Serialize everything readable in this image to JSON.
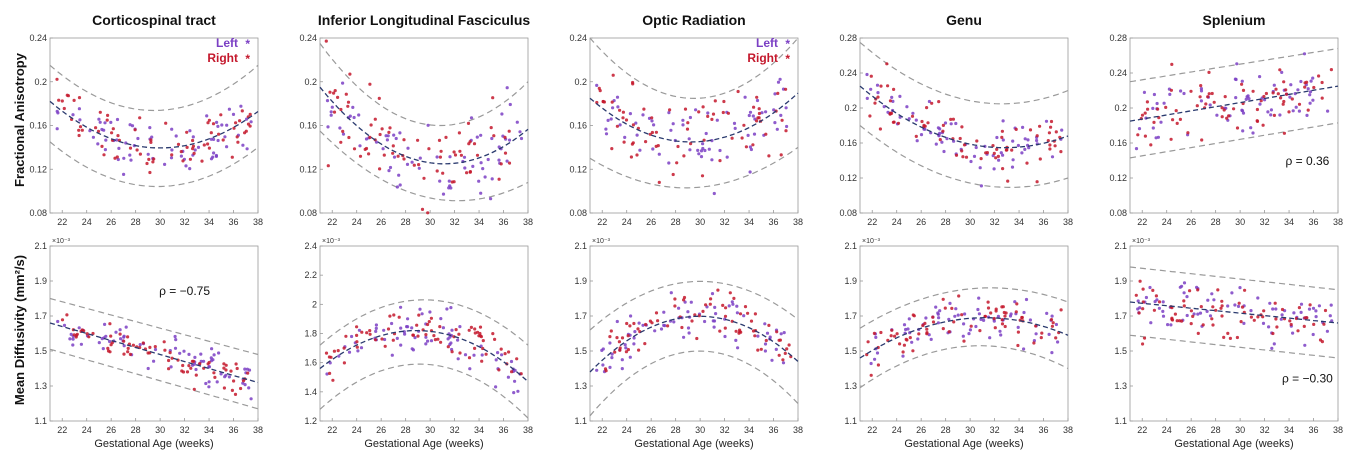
{
  "figure": {
    "row_labels": [
      "Fractional Anisotropy",
      "Mean Diffusivity (mm²/s)"
    ],
    "legend": {
      "left_label": "Left",
      "right_label": "Right",
      "left_color": "#7b3fc4",
      "right_color": "#c4182c",
      "marker": "*"
    }
  },
  "chart_data": [
    {
      "type": "scatter",
      "title": "Corticospinal tract",
      "xlabel": "",
      "ylabel": "Fractional Anisotropy",
      "xlim": [
        21,
        38
      ],
      "ylim": [
        0.08,
        0.24
      ],
      "xticks": [
        "22",
        "24",
        "26",
        "28",
        "30",
        "32",
        "34",
        "36",
        "38"
      ],
      "yticks": [
        "0.08",
        "0.12",
        "0.16",
        "0.2",
        "0.24"
      ],
      "fit": {
        "type": "quadratic",
        "points": [
          [
            21,
            0.182
          ],
          [
            31,
            0.14
          ],
          [
            37,
            0.165
          ]
        ]
      },
      "band": {
        "upper": [
          [
            21,
            0.215
          ],
          [
            31,
            0.175
          ],
          [
            38,
            0.215
          ]
        ],
        "lower": [
          [
            21,
            0.145
          ],
          [
            31,
            0.105
          ],
          [
            38,
            0.14
          ]
        ]
      },
      "series": [
        {
          "name": "Left",
          "spread": 0.012
        },
        {
          "name": "Right",
          "spread": 0.012
        }
      ],
      "annotation": "",
      "exponent": "",
      "legend": true
    },
    {
      "type": "scatter",
      "title": "Inferior Longitudinal Fasciculus",
      "xlabel": "",
      "ylabel": "",
      "xlim": [
        21,
        38
      ],
      "ylim": [
        0.08,
        0.24
      ],
      "xticks": [
        "22",
        "24",
        "26",
        "28",
        "30",
        "32",
        "34",
        "36",
        "38"
      ],
      "yticks": [
        "0.08",
        "0.12",
        "0.16",
        "0.2",
        "0.24"
      ],
      "fit": {
        "type": "quadratic",
        "points": [
          [
            21,
            0.195
          ],
          [
            31,
            0.125
          ],
          [
            37,
            0.148
          ]
        ]
      },
      "band": {
        "upper": [
          [
            21,
            0.235
          ],
          [
            31,
            0.16
          ],
          [
            38,
            0.2
          ]
        ],
        "lower": [
          [
            21,
            0.155
          ],
          [
            31,
            0.092
          ],
          [
            38,
            0.108
          ]
        ]
      },
      "series": [
        {
          "name": "Left",
          "spread": 0.018
        },
        {
          "name": "Right",
          "spread": 0.018
        }
      ],
      "annotation": "",
      "exponent": "",
      "legend": false
    },
    {
      "type": "scatter",
      "title": "Optic Radiation",
      "xlabel": "",
      "ylabel": "",
      "xlim": [
        21,
        38
      ],
      "ylim": [
        0.08,
        0.24
      ],
      "xticks": [
        "22",
        "24",
        "26",
        "28",
        "30",
        "32",
        "34",
        "36",
        "38"
      ],
      "yticks": [
        "0.08",
        "0.12",
        "0.16",
        "0.2",
        "0.24"
      ],
      "fit": {
        "type": "quadratic",
        "points": [
          [
            21,
            0.185
          ],
          [
            29,
            0.145
          ],
          [
            37,
            0.18
          ]
        ]
      },
      "band": {
        "upper": [
          [
            21,
            0.24
          ],
          [
            29,
            0.185
          ],
          [
            38,
            0.24
          ]
        ],
        "lower": [
          [
            21,
            0.13
          ],
          [
            29,
            0.103
          ],
          [
            38,
            0.14
          ]
        ]
      },
      "series": [
        {
          "name": "Left",
          "spread": 0.017
        },
        {
          "name": "Right",
          "spread": 0.017
        }
      ],
      "annotation": "",
      "exponent": "",
      "legend": true
    },
    {
      "type": "scatter",
      "title": "Genu",
      "xlabel": "",
      "ylabel": "",
      "xlim": [
        21,
        38
      ],
      "ylim": [
        0.08,
        0.28
      ],
      "xticks": [
        "22",
        "24",
        "26",
        "28",
        "30",
        "32",
        "34",
        "36",
        "38"
      ],
      "yticks": [
        "0.08",
        "0.12",
        "0.16",
        "0.2",
        "0.24",
        "0.28"
      ],
      "fit": {
        "type": "quadratic",
        "points": [
          [
            21,
            0.225
          ],
          [
            32,
            0.155
          ],
          [
            38,
            0.168
          ]
        ]
      },
      "band": {
        "upper": [
          [
            21,
            0.275
          ],
          [
            32,
            0.205
          ],
          [
            38,
            0.22
          ]
        ],
        "lower": [
          [
            21,
            0.18
          ],
          [
            32,
            0.11
          ],
          [
            38,
            0.12
          ]
        ]
      },
      "series": [
        {
          "name": "Left",
          "spread": 0.016
        },
        {
          "name": "Right",
          "spread": 0.016
        }
      ],
      "annotation": "",
      "exponent": "",
      "legend": false
    },
    {
      "type": "scatter",
      "title": "Splenium",
      "xlabel": "",
      "ylabel": "",
      "xlim": [
        21,
        38
      ],
      "ylim": [
        0.08,
        0.28
      ],
      "xticks": [
        "22",
        "24",
        "26",
        "28",
        "30",
        "32",
        "34",
        "36",
        "38"
      ],
      "yticks": [
        "0.08",
        "0.12",
        "0.16",
        "0.2",
        "0.24",
        "0.28"
      ],
      "fit": {
        "type": "linear",
        "points": [
          [
            21,
            0.185
          ],
          [
            38,
            0.225
          ]
        ]
      },
      "band": {
        "upper": [
          [
            21,
            0.23
          ],
          [
            38,
            0.268
          ]
        ],
        "lower": [
          [
            21,
            0.143
          ],
          [
            38,
            0.183
          ]
        ]
      },
      "series": [
        {
          "name": "Left",
          "spread": 0.018
        },
        {
          "name": "Right",
          "spread": 0.018
        }
      ],
      "annotation": "ρ = 0.36",
      "annotation_at": [
        35.5,
        0.135
      ],
      "exponent": "",
      "legend": false
    },
    {
      "type": "scatter",
      "title": "",
      "xlabel": "Gestational Age (weeks)",
      "ylabel": "Mean Diffusivity (mm²/s)",
      "xlim": [
        21,
        38
      ],
      "ylim": [
        1.1,
        2.1
      ],
      "xticks": [
        "22",
        "24",
        "26",
        "28",
        "30",
        "32",
        "34",
        "36",
        "38"
      ],
      "yticks": [
        "1.1",
        "1.3",
        "1.5",
        "1.7",
        "1.9",
        "2.1"
      ],
      "fit": {
        "type": "linear",
        "points": [
          [
            21,
            1.66
          ],
          [
            38,
            1.32
          ]
        ]
      },
      "band": {
        "upper": [
          [
            21,
            1.8
          ],
          [
            38,
            1.48
          ]
        ],
        "lower": [
          [
            21,
            1.51
          ],
          [
            38,
            1.17
          ]
        ]
      },
      "series": [
        {
          "name": "Left",
          "spread": 0.05
        },
        {
          "name": "Right",
          "spread": 0.05
        }
      ],
      "annotation": "ρ = −0.75",
      "annotation_at": [
        32,
        1.82
      ],
      "exponent": "×10⁻³",
      "legend": false
    },
    {
      "type": "scatter",
      "title": "",
      "xlabel": "Gestational Age (weeks)",
      "ylabel": "",
      "xlim": [
        21,
        38
      ],
      "ylim": [
        1.2,
        2.4
      ],
      "xticks": [
        "22",
        "24",
        "26",
        "28",
        "30",
        "32",
        "34",
        "36",
        "38"
      ],
      "yticks": [
        "1.2",
        "1.4",
        "1.6",
        "1.8",
        "2",
        "2.2",
        "2.4"
      ],
      "fit": {
        "type": "quadratic",
        "points": [
          [
            21,
            1.56
          ],
          [
            29,
            1.82
          ],
          [
            38,
            1.47
          ]
        ]
      },
      "band": {
        "upper": [
          [
            21,
            1.72
          ],
          [
            29,
            2.03
          ],
          [
            38,
            1.72
          ]
        ],
        "lower": [
          [
            21,
            1.28
          ],
          [
            29,
            1.59
          ],
          [
            38,
            1.22
          ]
        ]
      },
      "series": [
        {
          "name": "Left",
          "spread": 0.08
        },
        {
          "name": "Right",
          "spread": 0.08
        }
      ],
      "annotation": "",
      "exponent": "×10⁻³",
      "legend": false
    },
    {
      "type": "scatter",
      "title": "",
      "xlabel": "Gestational Age (weeks)",
      "ylabel": "",
      "xlim": [
        21,
        38
      ],
      "ylim": [
        1.1,
        2.1
      ],
      "xticks": [
        "22",
        "24",
        "26",
        "28",
        "30",
        "32",
        "34",
        "36",
        "38"
      ],
      "yticks": [
        "1.1",
        "1.3",
        "1.5",
        "1.7",
        "1.9",
        "2.1"
      ],
      "fit": {
        "type": "quadratic",
        "points": [
          [
            21,
            1.38
          ],
          [
            28.5,
            1.69
          ],
          [
            38,
            1.44
          ]
        ]
      },
      "band": {
        "upper": [
          [
            21,
            1.62
          ],
          [
            28.5,
            1.89
          ],
          [
            38,
            1.68
          ]
        ],
        "lower": [
          [
            21,
            1.13
          ],
          [
            28.5,
            1.49
          ],
          [
            38,
            1.2
          ]
        ]
      },
      "series": [
        {
          "name": "Left",
          "spread": 0.07
        },
        {
          "name": "Right",
          "spread": 0.07
        }
      ],
      "annotation": "",
      "exponent": "×10⁻³",
      "legend": false
    },
    {
      "type": "scatter",
      "title": "",
      "xlabel": "Gestational Age (weeks)",
      "ylabel": "",
      "xlim": [
        21,
        38
      ],
      "ylim": [
        1.1,
        2.1
      ],
      "xticks": [
        "22",
        "24",
        "26",
        "28",
        "30",
        "32",
        "34",
        "36",
        "38"
      ],
      "yticks": [
        "1.1",
        "1.3",
        "1.5",
        "1.7",
        "1.9",
        "2.1"
      ],
      "fit": {
        "type": "quadratic",
        "points": [
          [
            21,
            1.46
          ],
          [
            31,
            1.69
          ],
          [
            38,
            1.59
          ]
        ]
      },
      "band": {
        "upper": [
          [
            21,
            1.63
          ],
          [
            31,
            1.86
          ],
          [
            38,
            1.78
          ]
        ],
        "lower": [
          [
            21,
            1.29
          ],
          [
            31,
            1.53
          ],
          [
            38,
            1.4
          ]
        ]
      },
      "series": [
        {
          "name": "Left",
          "spread": 0.06
        },
        {
          "name": "Right",
          "spread": 0.06
        }
      ],
      "annotation": "",
      "exponent": "×10⁻³",
      "legend": false
    },
    {
      "type": "scatter",
      "title": "",
      "xlabel": "Gestational Age (weeks)",
      "ylabel": "",
      "xlim": [
        21,
        38
      ],
      "ylim": [
        1.1,
        2.1
      ],
      "xticks": [
        "22",
        "24",
        "26",
        "28",
        "30",
        "32",
        "34",
        "36",
        "38"
      ],
      "yticks": [
        "1.1",
        "1.3",
        "1.5",
        "1.7",
        "1.9",
        "2.1"
      ],
      "fit": {
        "type": "linear",
        "points": [
          [
            21,
            1.78
          ],
          [
            38,
            1.66
          ]
        ]
      },
      "band": {
        "upper": [
          [
            21,
            1.98
          ],
          [
            38,
            1.85
          ]
        ],
        "lower": [
          [
            21,
            1.59
          ],
          [
            38,
            1.46
          ]
        ]
      },
      "series": [
        {
          "name": "Left",
          "spread": 0.07
        },
        {
          "name": "Right",
          "spread": 0.07
        }
      ],
      "annotation": "ρ = −0.30",
      "annotation_at": [
        35.5,
        1.32
      ],
      "exponent": "×10⁻³",
      "legend": false
    }
  ]
}
